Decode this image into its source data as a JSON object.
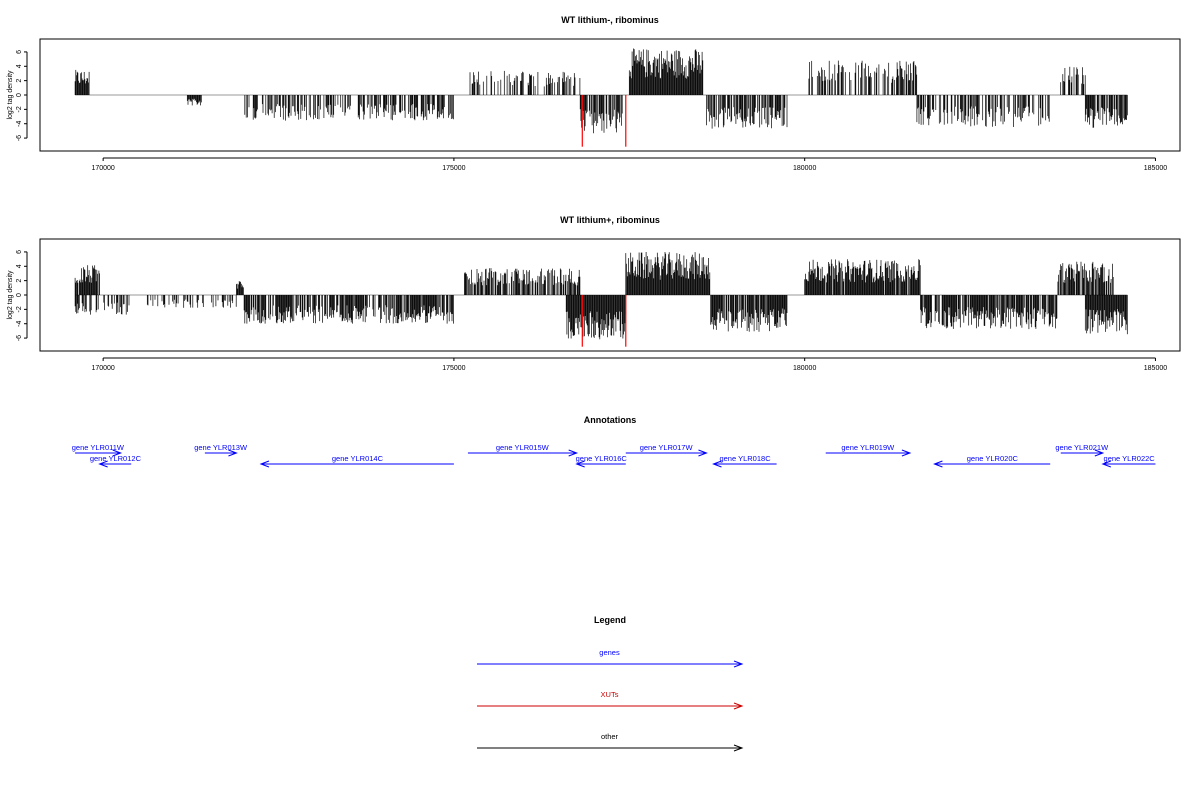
{
  "chart_data": [
    {
      "type": "bar",
      "title": "WT lithium-, ribominus",
      "ylabel": "log2 tag density",
      "xlabel": "",
      "xlim": [
        169100,
        185350
      ],
      "ylim": [
        -7.8,
        7.8
      ],
      "x_ticks": [
        "170000",
        "175000",
        "180000",
        "185000"
      ],
      "y_ticks": [
        "6",
        "4",
        "2",
        "0",
        "-2",
        "-4",
        "-6"
      ],
      "data_start": 169600,
      "data_end": 184600,
      "segments": [
        {
          "from": 169600,
          "to": 169800,
          "sign": 1,
          "amp": 3.5,
          "density": 2
        },
        {
          "from": 171200,
          "to": 171400,
          "sign": -1,
          "amp": 1.5,
          "density": 2
        },
        {
          "from": 172000,
          "to": 175000,
          "sign": -1,
          "amp": 3.6,
          "density": 0.55
        },
        {
          "from": 175200,
          "to": 176800,
          "sign": 1,
          "amp": 3.4,
          "density": 0.45
        },
        {
          "from": 176800,
          "to": 177400,
          "sign": -1,
          "amp": 5.5,
          "density": 0.75
        },
        {
          "from": 177500,
          "to": 178550,
          "sign": 1,
          "amp": 6.5,
          "density": 1.0
        },
        {
          "from": 178600,
          "to": 179750,
          "sign": -1,
          "amp": 4.8,
          "density": 0.75
        },
        {
          "from": 180050,
          "to": 181600,
          "sign": 1,
          "amp": 4.8,
          "density": 0.55
        },
        {
          "from": 181600,
          "to": 183500,
          "sign": -1,
          "amp": 4.5,
          "density": 0.55
        },
        {
          "from": 183650,
          "to": 184000,
          "sign": 1,
          "amp": 4.2,
          "density": 0.6
        },
        {
          "from": 184000,
          "to": 184600,
          "sign": -1,
          "amp": 4.6,
          "density": 0.85
        }
      ],
      "highlight_lines": [
        {
          "x": 176830,
          "y": -7.2,
          "color": "#ff0000"
        },
        {
          "x": 177450,
          "y": -7.2,
          "color": "#ff0000"
        }
      ]
    },
    {
      "type": "bar",
      "title": "WT lithium+, ribominus",
      "ylabel": "log2 tag density",
      "xlabel": "",
      "xlim": [
        169100,
        185350
      ],
      "ylim": [
        -7.8,
        7.8
      ],
      "x_ticks": [
        "170000",
        "175000",
        "180000",
        "185000"
      ],
      "y_ticks": [
        "6",
        "4",
        "2",
        "0",
        "-2",
        "-4",
        "-6"
      ],
      "data_start": 169600,
      "data_end": 184600,
      "segments": [
        {
          "from": 169600,
          "to": 169950,
          "sign": 1,
          "amp": 4.2,
          "density": 0.9
        },
        {
          "from": 169600,
          "to": 170400,
          "sign": -1,
          "amp": 3.0,
          "density": 0.45
        },
        {
          "from": 170600,
          "to": 171900,
          "sign": -1,
          "amp": 1.8,
          "density": 0.35
        },
        {
          "from": 171900,
          "to": 172000,
          "sign": 1,
          "amp": 2.2,
          "density": 1
        },
        {
          "from": 172000,
          "to": 175000,
          "sign": -1,
          "amp": 4.0,
          "density": 0.8
        },
        {
          "from": 175150,
          "to": 176800,
          "sign": 1,
          "amp": 3.8,
          "density": 0.7
        },
        {
          "from": 176600,
          "to": 177450,
          "sign": -1,
          "amp": 6.2,
          "density": 1.0
        },
        {
          "from": 177450,
          "to": 178650,
          "sign": 1,
          "amp": 6.0,
          "density": 1.0
        },
        {
          "from": 178650,
          "to": 179750,
          "sign": -1,
          "amp": 5.2,
          "density": 0.9
        },
        {
          "from": 180000,
          "to": 181650,
          "sign": 1,
          "amp": 5.0,
          "density": 0.95
        },
        {
          "from": 181650,
          "to": 183600,
          "sign": -1,
          "amp": 4.8,
          "density": 0.8
        },
        {
          "from": 183600,
          "to": 184400,
          "sign": 1,
          "amp": 4.8,
          "density": 0.85
        },
        {
          "from": 184000,
          "to": 184600,
          "sign": -1,
          "amp": 5.5,
          "density": 1.0
        }
      ],
      "highlight_lines": [
        {
          "x": 176830,
          "y": -7.2,
          "color": "#ff0000"
        },
        {
          "x": 177450,
          "y": -7.2,
          "color": "#ff0000"
        }
      ]
    }
  ],
  "annotations": {
    "title": "Annotations",
    "color": "#0000ff",
    "genes": [
      {
        "label": "gene YLR011W",
        "start": 169600,
        "end": 170250,
        "strand": "+",
        "row": 0
      },
      {
        "label": "gene YLR012C",
        "start": 169950,
        "end": 170400,
        "strand": "-",
        "row": 1
      },
      {
        "label": "gene YLR013W",
        "start": 171450,
        "end": 171900,
        "strand": "+",
        "row": 0
      },
      {
        "label": "gene YLR014C",
        "start": 172250,
        "end": 175000,
        "strand": "-",
        "row": 1
      },
      {
        "label": "gene YLR015W",
        "start": 175200,
        "end": 176750,
        "strand": "+",
        "row": 0
      },
      {
        "label": "gene YLR016C",
        "start": 176750,
        "end": 177450,
        "strand": "-",
        "row": 1
      },
      {
        "label": "gene YLR017W",
        "start": 177450,
        "end": 178600,
        "strand": "+",
        "row": 0
      },
      {
        "label": "gene YLR018C",
        "start": 178700,
        "end": 179600,
        "strand": "-",
        "row": 1
      },
      {
        "label": "gene YLR019W",
        "start": 180300,
        "end": 181500,
        "strand": "+",
        "row": 0
      },
      {
        "label": "gene YLR020C",
        "start": 181850,
        "end": 183500,
        "strand": "-",
        "row": 1
      },
      {
        "label": "gene YLR021W",
        "start": 183650,
        "end": 184250,
        "strand": "+",
        "row": 0
      },
      {
        "label": "gene YLR022C",
        "start": 184250,
        "end": 185000,
        "strand": "-",
        "row": 1
      }
    ]
  },
  "legend": {
    "title": "Legend",
    "items": [
      {
        "label": "genes",
        "color": "#0000ff"
      },
      {
        "label": "XUTs",
        "color": "#cc0000"
      },
      {
        "label": "other",
        "color": "#000000"
      }
    ]
  }
}
